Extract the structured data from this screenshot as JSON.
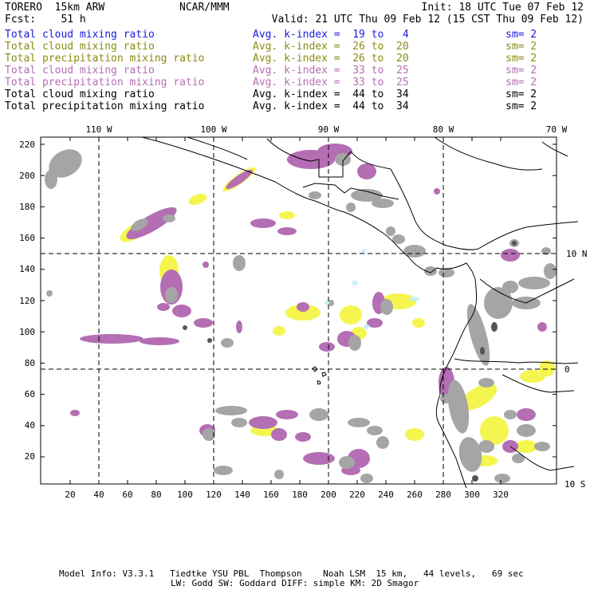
{
  "header": {
    "model": "TORERO  15km ARW",
    "org": "NCAR/MMM",
    "init": "Init: 18 UTC Tue 07 Feb 12",
    "fcst": "Fcst:    51 h",
    "valid": "Valid: 21 UTC Thu 09 Feb 12 (15 CST Thu 09 Feb 12)"
  },
  "legend": [
    {
      "field": "Total cloud mixing ratio",
      "kindex": "Avg. k-index =  19 to   4",
      "sm": "sm= 2",
      "color": "#1a1adc"
    },
    {
      "field": "Total cloud mixing ratio",
      "kindex": "Avg. k-index =  26 to  20",
      "sm": "sm= 2",
      "color": "#8c8c14"
    },
    {
      "field": "Total precipitation mixing ratio",
      "kindex": "Avg. k-index =  26 to  20",
      "sm": "sm= 2",
      "color": "#8c8c14"
    },
    {
      "field": "Total cloud mixing ratio",
      "kindex": "Avg. k-index =  33 to  25",
      "sm": "sm= 2",
      "color": "#b46eb4"
    },
    {
      "field": "Total precipitation mixing ratio",
      "kindex": "Avg. k-index =  33 to  25",
      "sm": "sm= 2",
      "color": "#b46eb4"
    },
    {
      "field": "Total cloud mixing ratio",
      "kindex": "Avg. k-index =  44 to  34",
      "sm": "sm= 2",
      "color": "#000000"
    },
    {
      "field": "Total precipitation mixing ratio",
      "kindex": "Avg. k-index =  44 to  34",
      "sm": "sm= 2",
      "color": "#000000"
    }
  ],
  "map": {
    "lon_labels": [
      "110 W",
      "100 W",
      "90 W",
      "80 W",
      "70 W"
    ],
    "lat_labels": [
      "10 N",
      "0",
      "10 S"
    ],
    "y_ticks": [
      "220",
      "200",
      "180",
      "160",
      "140",
      "120",
      "100",
      "80",
      "60",
      "40",
      "20"
    ],
    "x_ticks": [
      "20",
      "40",
      "60",
      "80",
      "100",
      "120",
      "140",
      "160",
      "180",
      "200",
      "220",
      "240",
      "260",
      "280",
      "300",
      "320"
    ],
    "colors": {
      "gray": "#a5a5a5",
      "dark": "#555555",
      "yellow": "#f5f550",
      "magenta": "#b46eb4",
      "cyan": "#c8f0fa",
      "coast": "#000000"
    }
  },
  "footer": {
    "line1": "Model Info: V3.3.1   Tiedtke YSU PBL  Thompson    Noah LSM  15 km,   44 levels,   69 sec",
    "line2": "LW: Godd SW: Goddard DIFF: simple KM: 2D Smagor"
  }
}
